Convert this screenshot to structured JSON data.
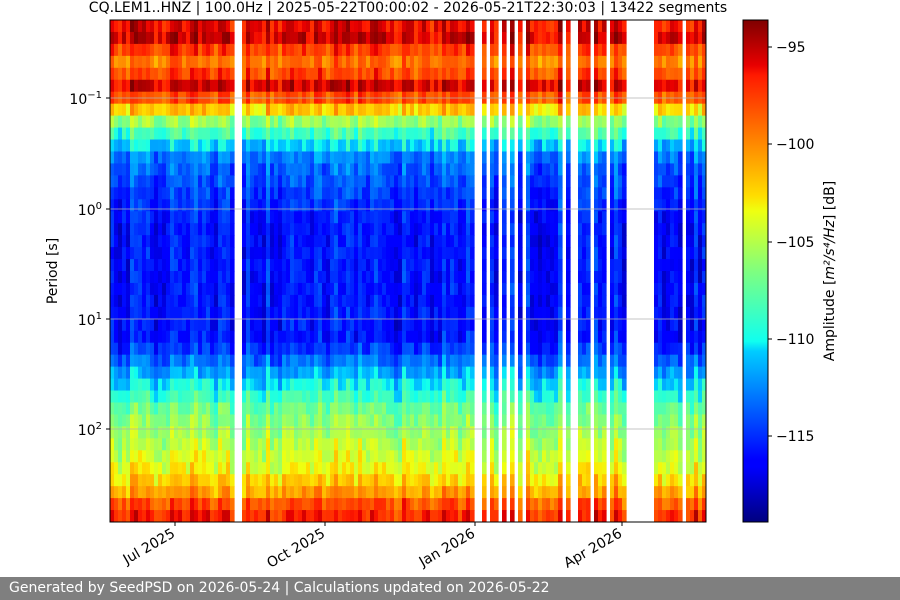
{
  "chart_data": {
    "type": "heatmap",
    "title": "CQ.LEM1..HNZ | 100.0Hz | 2025-05-22T00:00:02 - 2026-05-21T22:30:03 | 13422 segments",
    "ylabel": "Period [s]",
    "yscale": "log",
    "y_ticks": [
      {
        "value": 0.1,
        "base": "10",
        "exp": "−1"
      },
      {
        "value": 1,
        "base": "10",
        "exp": "0"
      },
      {
        "value": 10,
        "base": "10",
        "exp": "1"
      },
      {
        "value": 100,
        "base": "10",
        "exp": "2"
      }
    ],
    "x_ticks": [
      {
        "date": "2025-07-01",
        "label": "Jul 2025"
      },
      {
        "date": "2025-10-01",
        "label": "Oct 2025"
      },
      {
        "date": "2026-01-01",
        "label": "Jan 2026"
      },
      {
        "date": "2026-04-01",
        "label": "Apr 2026"
      }
    ],
    "colorbar": {
      "label_prefix": "Amplitude [",
      "label_math": "m²/s⁴/Hz",
      "label_suffix": "] [dB]",
      "ticks": [
        {
          "value": -95,
          "label": "−95"
        },
        {
          "value": -100,
          "label": "−100"
        },
        {
          "value": -105,
          "label": "−105"
        },
        {
          "value": -110,
          "label": "−110"
        },
        {
          "value": -115,
          "label": "−115"
        }
      ],
      "range": [
        -119.5,
        -93.2
      ],
      "colormap": "jet"
    },
    "grid": true
  },
  "footer": {
    "text": "Generated by SeedPSD on 2026-05-24 | Calculations updated on 2026-05-22"
  }
}
